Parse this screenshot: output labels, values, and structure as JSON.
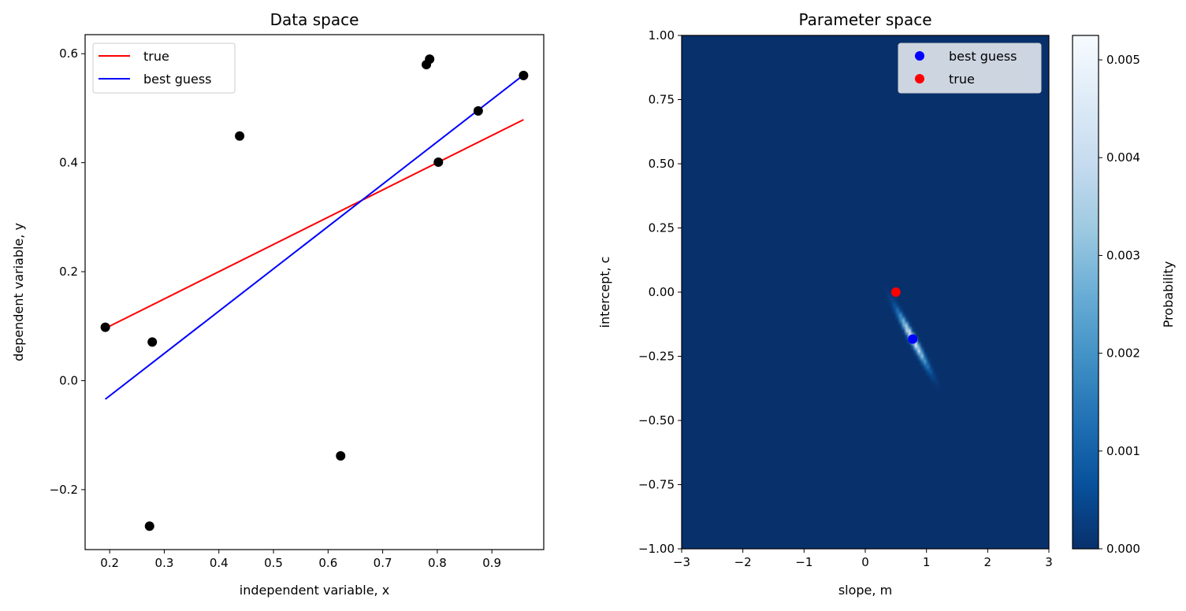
{
  "chart_data": [
    {
      "type": "scatter",
      "title": "Data space",
      "xlabel": "independent variable, x",
      "ylabel": "dependent variable, y",
      "xlim": [
        0.155,
        0.995
      ],
      "ylim": [
        -0.31,
        0.635
      ],
      "xticks": [
        0.2,
        0.3,
        0.4,
        0.5,
        0.6,
        0.7,
        0.8,
        0.9
      ],
      "xtick_labels": [
        "0.2",
        "0.3",
        "0.4",
        "0.5",
        "0.6",
        "0.7",
        "0.8",
        "0.9"
      ],
      "yticks": [
        -0.2,
        0.0,
        0.2,
        0.4,
        0.6
      ],
      "ytick_labels": [
        "−0.2",
        "0.0",
        "0.2",
        "0.4",
        "0.6"
      ],
      "grid": false,
      "legend_position": "top-left",
      "points": {
        "x": [
          0.192,
          0.278,
          0.273,
          0.438,
          0.623,
          0.78,
          0.786,
          0.802,
          0.875,
          0.958
        ],
        "y": [
          0.098,
          0.071,
          -0.267,
          0.449,
          -0.138,
          0.58,
          0.59,
          0.401,
          0.495,
          0.56
        ],
        "color": "#000000"
      },
      "series": [
        {
          "name": "true",
          "color": "#ff0000",
          "x": [
            0.192,
            0.958
          ],
          "y": [
            0.096,
            0.479
          ]
        },
        {
          "name": "best guess",
          "color": "#0000ff",
          "x": [
            0.192,
            0.958
          ],
          "y": [
            -0.034,
            0.561
          ]
        }
      ]
    },
    {
      "type": "heatmap",
      "title": "Parameter space",
      "xlabel": "slope, m",
      "ylabel": "intercept, c",
      "xlim": [
        -3,
        3
      ],
      "ylim": [
        -1,
        1
      ],
      "xticks": [
        -3,
        -2,
        -1,
        0,
        1,
        2,
        3
      ],
      "xtick_labels": [
        "−3",
        "−2",
        "−1",
        "0",
        "1",
        "2",
        "3"
      ],
      "yticks": [
        -1,
        -0.75,
        -0.5,
        -0.25,
        0,
        0.25,
        0.5,
        0.75,
        1
      ],
      "ytick_labels": [
        "−1.00",
        "−0.75",
        "−0.50",
        "−0.25",
        "0.00",
        "0.25",
        "0.50",
        "0.75",
        "1.00"
      ],
      "colormap": "Blues_r",
      "colorbar": {
        "label": "Probability",
        "min": 0,
        "max": 0.00525,
        "ticks": [
          0,
          0.001,
          0.002,
          0.003,
          0.004,
          0.005
        ],
        "tick_labels": [
          "0.000",
          "0.001",
          "0.002",
          "0.003",
          "0.004",
          "0.005"
        ],
        "colors": [
          "#08306b",
          "#08519c",
          "#2171b5",
          "#4292c6",
          "#6baed6",
          "#9ecae1",
          "#c6dbef",
          "#deebf7",
          "#f7fbff"
        ]
      },
      "distribution": {
        "peak": 0.00525,
        "mean": [
          0.775,
          -0.183
        ],
        "sigma": [
          0.155,
          0.068
        ],
        "correlation": -0.975
      },
      "legend_position": "top-right",
      "markers": [
        {
          "name": "best guess",
          "m": 0.775,
          "c": -0.183,
          "color": "#0000ff"
        },
        {
          "name": "true",
          "m": 0.5,
          "c": 0.0,
          "color": "#ff0000"
        }
      ]
    }
  ]
}
